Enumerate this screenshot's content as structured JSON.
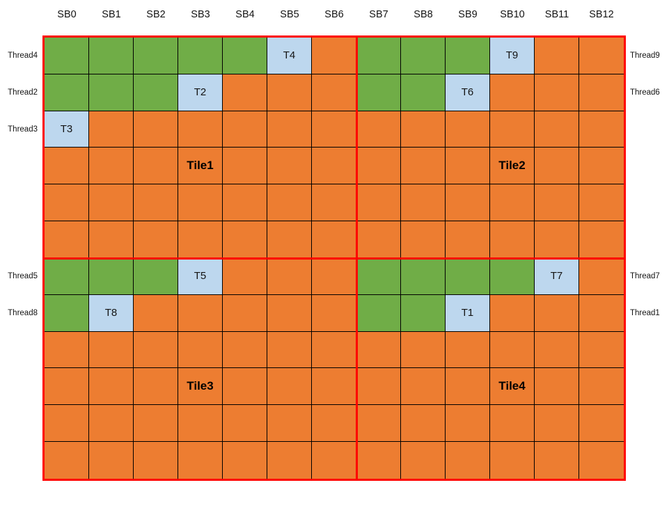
{
  "diagram": {
    "column_headers": [
      "SB0",
      "SB1",
      "SB2",
      "SB3",
      "SB4",
      "SB5",
      "SB6",
      "SB7",
      "SB8",
      "SB9",
      "SB10",
      "SB11",
      "SB12"
    ],
    "left_row_labels": [
      {
        "row": 0,
        "label": "Thread4"
      },
      {
        "row": 1,
        "label": "Thread2"
      },
      {
        "row": 2,
        "label": "Thread3"
      },
      {
        "row": 6,
        "label": "Thread5"
      },
      {
        "row": 7,
        "label": "Thread8"
      }
    ],
    "right_row_labels": [
      {
        "row": 0,
        "label": "Thread9"
      },
      {
        "row": 1,
        "label": "Thread6"
      },
      {
        "row": 6,
        "label": "Thread7"
      },
      {
        "row": 7,
        "label": "Thread1"
      }
    ],
    "grid": {
      "rows": 12,
      "cols": 13,
      "cell_colors_by_row": [
        "gggggbogggboo",
        "gggboooggbooo",
        "boooooooooooo",
        "ooooooooooooo",
        "ooooooooooooo",
        "ooooooooooooo",
        "gggboooggggbo",
        "gboooooggbooo",
        "ooooooooooooo",
        "ooooooooooooo",
        "ooooooooooooo",
        "ooooooooooooo"
      ],
      "legend": {
        "g": "green",
        "o": "orange",
        "b": "blue-task"
      }
    },
    "task_labels": [
      {
        "row": 0,
        "col": 5,
        "label": "T4"
      },
      {
        "row": 0,
        "col": 10,
        "label": "T9"
      },
      {
        "row": 1,
        "col": 3,
        "label": "T2"
      },
      {
        "row": 1,
        "col": 9,
        "label": "T6"
      },
      {
        "row": 2,
        "col": 0,
        "label": "T3"
      },
      {
        "row": 6,
        "col": 3,
        "label": "T5"
      },
      {
        "row": 6,
        "col": 11,
        "label": "T7"
      },
      {
        "row": 7,
        "col": 1,
        "label": "T8"
      },
      {
        "row": 7,
        "col": 9,
        "label": "T1"
      }
    ],
    "tile_labels": [
      {
        "row": 3,
        "col": 3,
        "label": "Tile1"
      },
      {
        "row": 3,
        "col": 10,
        "label": "Tile2"
      },
      {
        "row": 9,
        "col": 3,
        "label": "Tile3"
      },
      {
        "row": 9,
        "col": 10,
        "label": "Tile4"
      }
    ],
    "colors": {
      "green": "#70AD47",
      "orange": "#ED7D31",
      "blue": "#BDD7EE",
      "divider_red": "#FF0000",
      "gridline": "#000000",
      "text": "#1A1A1A"
    }
  }
}
